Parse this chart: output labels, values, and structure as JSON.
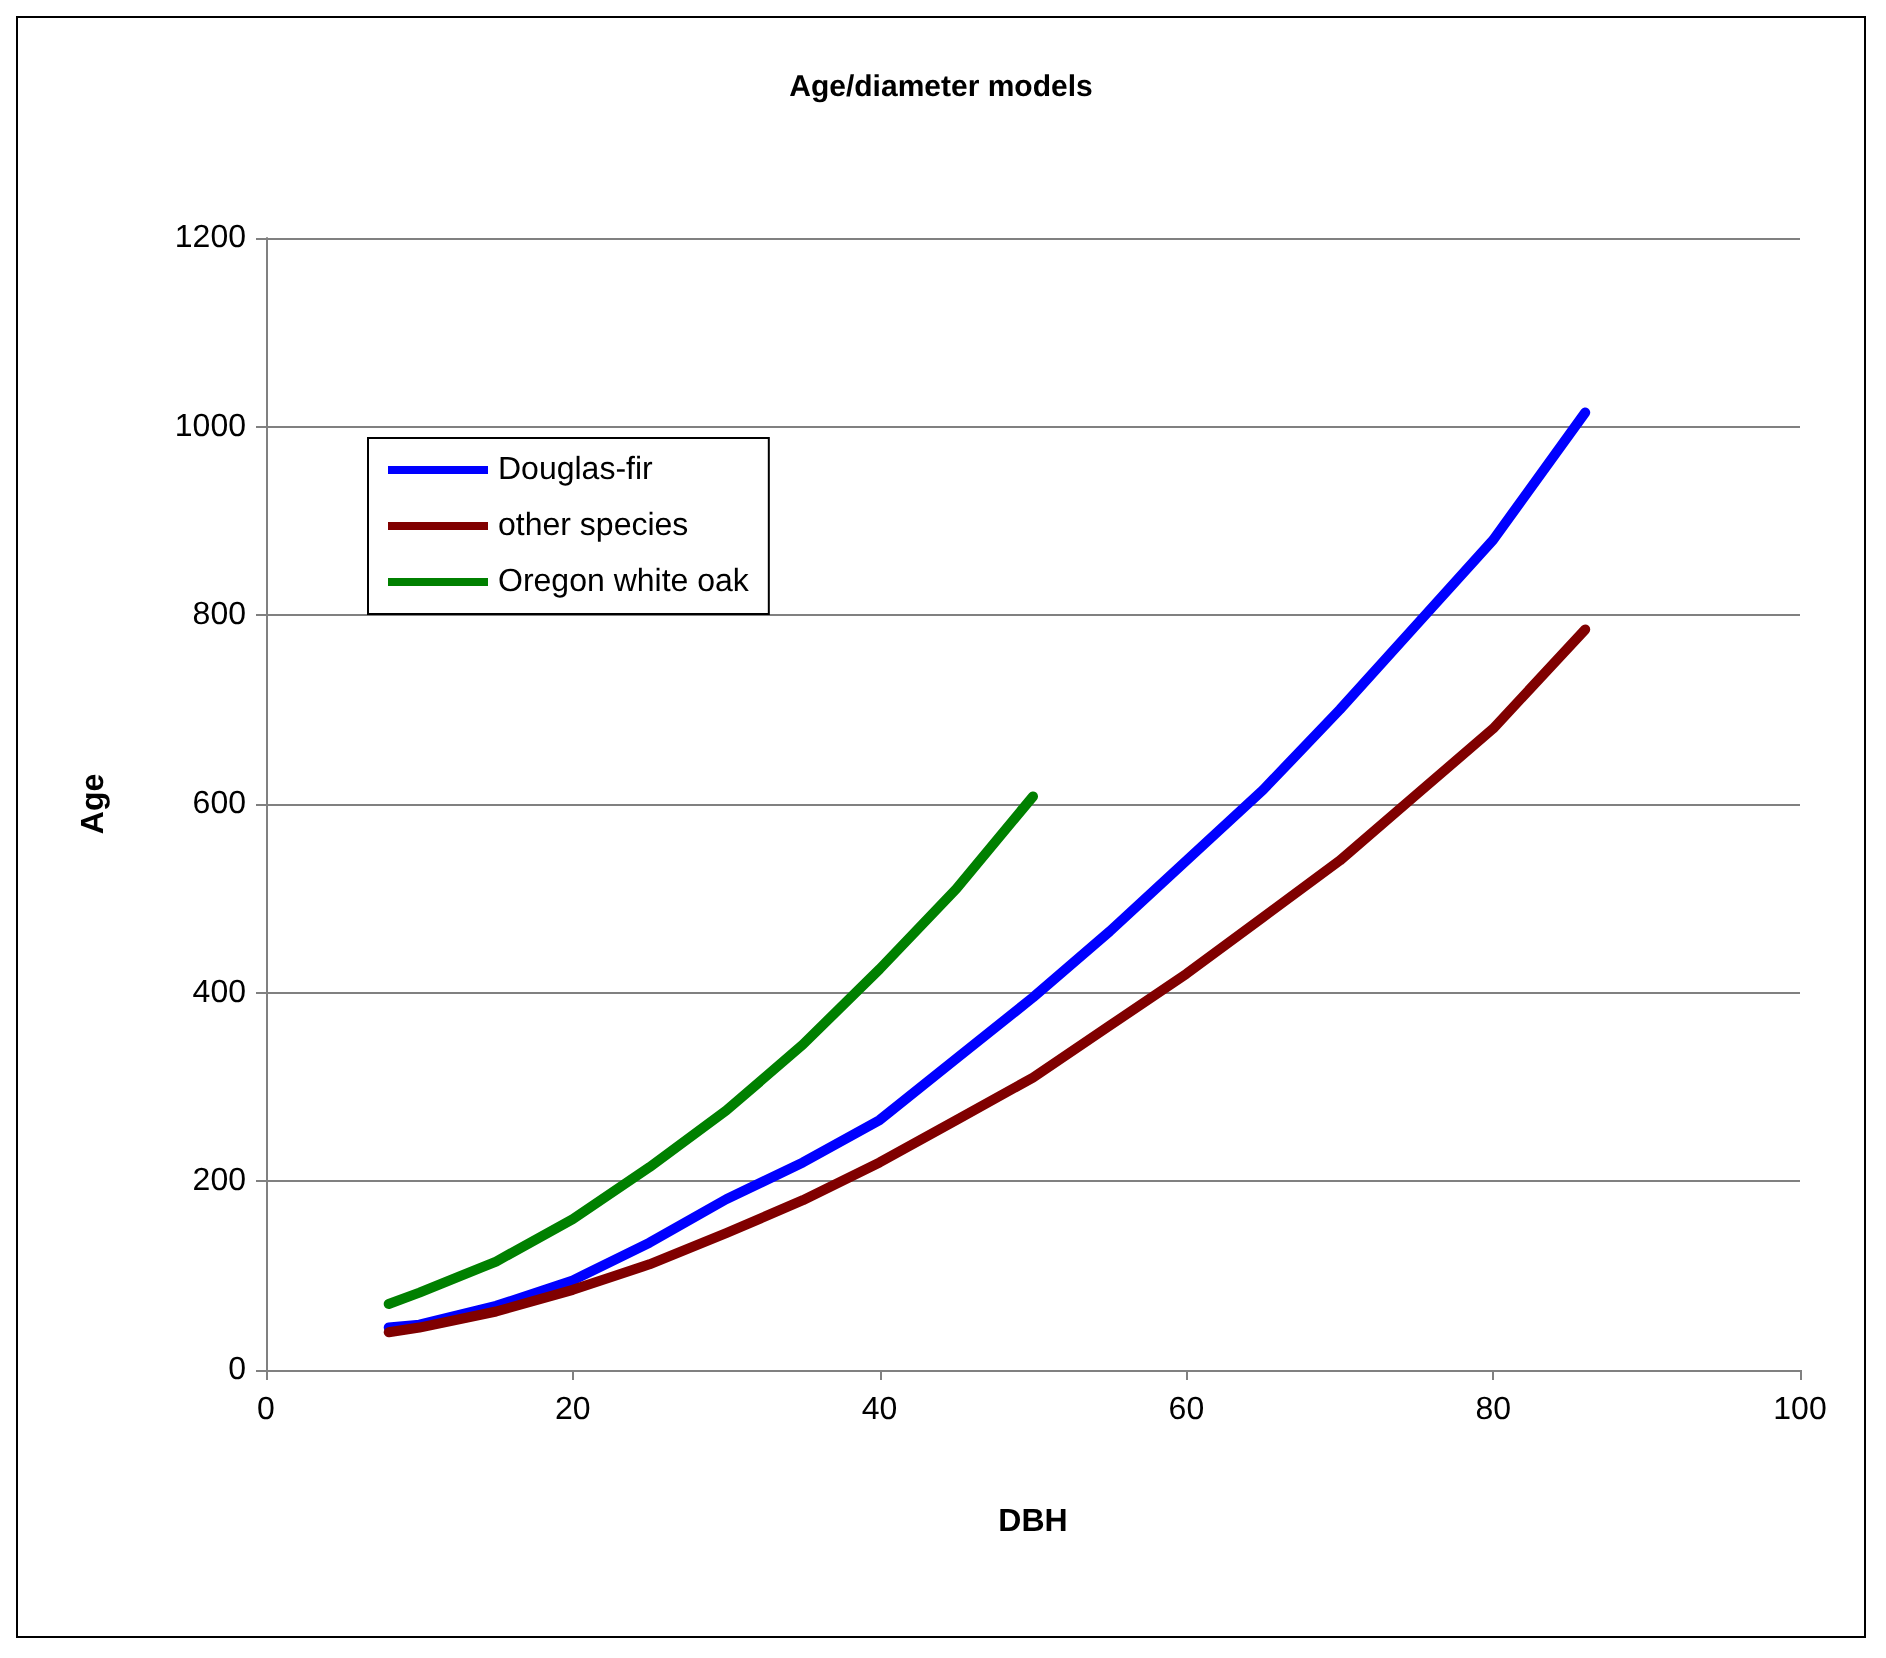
{
  "chart_data": {
    "type": "line",
    "title": "Age/diameter models",
    "xlabel": "DBH",
    "ylabel": "Age",
    "xlim": [
      0,
      100
    ],
    "xticks": [
      0,
      20,
      40,
      60,
      80,
      100
    ],
    "ylim": [
      0,
      1200
    ],
    "yticks": [
      0,
      200,
      400,
      600,
      800,
      1000,
      1200
    ],
    "grid": "y",
    "legend": "top left",
    "marker": "none",
    "line_style": "solid",
    "series": [
      {
        "name": "Douglas-fir",
        "color": "#0000ff",
        "x": [
          8,
          10,
          15,
          20,
          25,
          30,
          35,
          40,
          45,
          50,
          55,
          60,
          65,
          70,
          75,
          80,
          86
        ],
        "values": [
          45,
          48,
          68,
          95,
          135,
          181,
          220,
          265,
          330,
          395,
          465,
          540,
          615,
          700,
          790,
          880,
          1015
        ]
      },
      {
        "name": "other species",
        "color": "#800000",
        "x": [
          8,
          10,
          15,
          20,
          25,
          30,
          35,
          40,
          45,
          50,
          55,
          60,
          65,
          70,
          75,
          80,
          86
        ],
        "values": [
          40,
          45,
          62,
          85,
          112,
          145,
          180,
          220,
          265,
          310,
          365,
          420,
          480,
          540,
          610,
          680,
          785
        ]
      },
      {
        "name": "Oregon white oak",
        "color": "#008000",
        "x": [
          8,
          10,
          15,
          20,
          25,
          30,
          35,
          40,
          45,
          50
        ],
        "values": [
          70,
          82,
          115,
          160,
          215,
          275,
          345,
          425,
          510,
          608
        ]
      }
    ]
  }
}
